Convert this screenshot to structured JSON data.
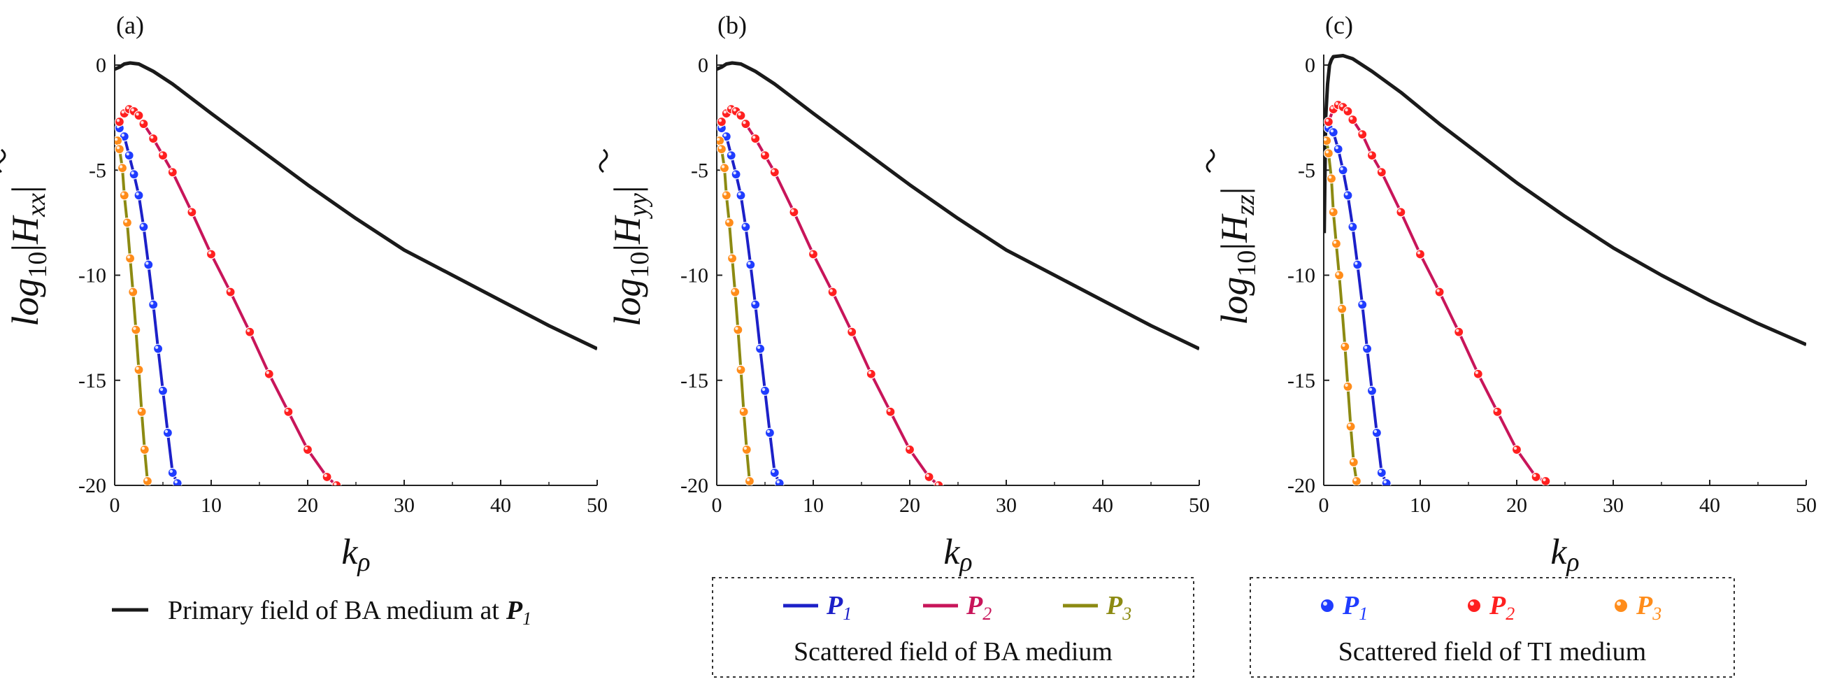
{
  "colors": {
    "primary": "#1a1a1a",
    "P1": "#1c20c8",
    "P2": "#c8155a",
    "P3": "#8c8a12",
    "P1_marker": "#1f3cff",
    "P2_marker": "#ff1f1f",
    "P3_marker": "#ff8c1a"
  },
  "chart_data": [
    {
      "type": "line",
      "panel_label": "(a)",
      "ylabel_main": "log",
      "ylabel_sub": "10",
      "ylabel_field": "H",
      "ylabel_component": "xx",
      "xlabel_main": "k",
      "xlabel_sub": "ρ",
      "xlim": [
        0,
        50
      ],
      "ylim": [
        -20,
        0.5
      ],
      "x_ticks": [
        "0",
        "10",
        "20",
        "30",
        "40",
        "50"
      ],
      "y_ticks": [
        "0",
        "-5",
        "-10",
        "-15",
        "-20"
      ],
      "primary": {
        "x": [
          0,
          0.5,
          1,
          1.6,
          2.5,
          4,
          6,
          10,
          15,
          20,
          25,
          30,
          35,
          40,
          45,
          50
        ],
        "y": [
          -0.2,
          -0.1,
          0.05,
          0.1,
          0.05,
          -0.3,
          -0.9,
          -2.3,
          -4.0,
          -5.7,
          -7.3,
          -8.8,
          -10.0,
          -11.2,
          -12.4,
          -13.5
        ]
      },
      "series": [
        {
          "name": "P1",
          "x": [
            0.5,
            1.0,
            1.5,
            2.0,
            2.5,
            3.0,
            3.5,
            4.0,
            4.5,
            5.0,
            5.5,
            6.0,
            6.5
          ],
          "y": [
            -3.0,
            -3.4,
            -4.3,
            -5.2,
            -6.2,
            -7.7,
            -9.5,
            -11.4,
            -13.5,
            -15.5,
            -17.5,
            -19.4,
            -19.9
          ]
        },
        {
          "name": "P2",
          "x": [
            0.5,
            1.0,
            1.5,
            2.0,
            2.5,
            3.0,
            4.0,
            5.0,
            6.0,
            8.0,
            10.0,
            12.0,
            14.0,
            16.0,
            18.0,
            20.0,
            22.0,
            23.0
          ],
          "y": [
            -2.7,
            -2.3,
            -2.1,
            -2.2,
            -2.4,
            -2.8,
            -3.5,
            -4.3,
            -5.1,
            -7.0,
            -9.0,
            -10.8,
            -12.7,
            -14.7,
            -16.5,
            -18.3,
            -19.6,
            -20.0
          ]
        },
        {
          "name": "P3",
          "x": [
            0.3,
            0.5,
            0.8,
            1.0,
            1.3,
            1.6,
            1.9,
            2.2,
            2.5,
            2.8,
            3.1,
            3.4
          ],
          "y": [
            -3.6,
            -4.0,
            -4.9,
            -6.2,
            -7.5,
            -9.2,
            -10.8,
            -12.6,
            -14.5,
            -16.5,
            -18.3,
            -19.8
          ]
        }
      ]
    },
    {
      "type": "line",
      "panel_label": "(b)",
      "ylabel_main": "log",
      "ylabel_sub": "10",
      "ylabel_field": "H",
      "ylabel_component": "yy",
      "xlabel_main": "k",
      "xlabel_sub": "ρ",
      "xlim": [
        0,
        50
      ],
      "ylim": [
        -20,
        0.5
      ],
      "x_ticks": [
        "0",
        "10",
        "20",
        "30",
        "40",
        "50"
      ],
      "y_ticks": [
        "0",
        "-5",
        "-10",
        "-15",
        "-20"
      ],
      "primary": {
        "x": [
          0,
          0.5,
          1,
          1.6,
          2.5,
          4,
          6,
          10,
          15,
          20,
          25,
          30,
          35,
          40,
          45,
          50
        ],
        "y": [
          -0.2,
          -0.1,
          0.05,
          0.1,
          0.05,
          -0.3,
          -0.9,
          -2.3,
          -4.0,
          -5.7,
          -7.3,
          -8.8,
          -10.0,
          -11.2,
          -12.4,
          -13.5
        ]
      },
      "series": [
        {
          "name": "P1",
          "x": [
            0.5,
            1.0,
            1.5,
            2.0,
            2.5,
            3.0,
            3.5,
            4.0,
            4.5,
            5.0,
            5.5,
            6.0,
            6.5
          ],
          "y": [
            -3.0,
            -3.4,
            -4.3,
            -5.2,
            -6.2,
            -7.7,
            -9.5,
            -11.4,
            -13.5,
            -15.5,
            -17.5,
            -19.4,
            -19.9
          ]
        },
        {
          "name": "P2",
          "x": [
            0.5,
            1.0,
            1.5,
            2.0,
            2.5,
            3.0,
            4.0,
            5.0,
            6.0,
            8.0,
            10.0,
            12.0,
            14.0,
            16.0,
            18.0,
            20.0,
            22.0,
            23.0
          ],
          "y": [
            -2.7,
            -2.3,
            -2.1,
            -2.2,
            -2.4,
            -2.8,
            -3.5,
            -4.3,
            -5.1,
            -7.0,
            -9.0,
            -10.8,
            -12.7,
            -14.7,
            -16.5,
            -18.3,
            -19.6,
            -20.0
          ]
        },
        {
          "name": "P3",
          "x": [
            0.3,
            0.5,
            0.8,
            1.0,
            1.3,
            1.6,
            1.9,
            2.2,
            2.5,
            2.8,
            3.1,
            3.4
          ],
          "y": [
            -3.6,
            -4.0,
            -4.9,
            -6.2,
            -7.5,
            -9.2,
            -10.8,
            -12.6,
            -14.5,
            -16.5,
            -18.3,
            -19.8
          ]
        }
      ]
    },
    {
      "type": "line",
      "panel_label": "(c)",
      "ylabel_main": "log",
      "ylabel_sub": "10",
      "ylabel_field": "H",
      "ylabel_component": "zz",
      "xlabel_main": "k",
      "xlabel_sub": "ρ",
      "xlim": [
        0,
        50
      ],
      "ylim": [
        -20,
        0.5
      ],
      "x_ticks": [
        "0",
        "10",
        "20",
        "30",
        "40",
        "50"
      ],
      "y_ticks": [
        "0",
        "-5",
        "-10",
        "-15",
        "-20"
      ],
      "primary": {
        "x": [
          0.05,
          0.2,
          0.4,
          0.6,
          0.8,
          1.0,
          2.0,
          3.0,
          5.0,
          8.0,
          12.0,
          16.0,
          20.0,
          25.0,
          30.0,
          35.0,
          40.0,
          45.0,
          50.0
        ],
        "y": [
          -8.0,
          -2.5,
          -0.9,
          0.0,
          0.25,
          0.4,
          0.45,
          0.3,
          -0.3,
          -1.3,
          -2.8,
          -4.2,
          -5.6,
          -7.2,
          -8.7,
          -10.0,
          -11.2,
          -12.3,
          -13.3
        ]
      },
      "series": [
        {
          "name": "P1",
          "x": [
            0.5,
            1.0,
            1.5,
            2.0,
            2.5,
            3.0,
            3.5,
            4.0,
            4.5,
            5.0,
            5.5,
            6.0,
            6.5
          ],
          "y": [
            -3.0,
            -3.2,
            -4.0,
            -5.0,
            -6.2,
            -7.7,
            -9.5,
            -11.4,
            -13.5,
            -15.5,
            -17.5,
            -19.4,
            -19.9
          ]
        },
        {
          "name": "P2",
          "x": [
            0.5,
            1.0,
            1.5,
            2.0,
            2.5,
            3.0,
            4.0,
            5.0,
            6.0,
            8.0,
            10.0,
            12.0,
            14.0,
            16.0,
            18.0,
            20.0,
            22.0,
            23.0
          ],
          "y": [
            -2.7,
            -2.1,
            -1.9,
            -2.0,
            -2.2,
            -2.6,
            -3.3,
            -4.3,
            -5.1,
            -7.0,
            -9.0,
            -10.8,
            -12.7,
            -14.7,
            -16.5,
            -18.3,
            -19.6,
            -19.8
          ]
        },
        {
          "name": "P3",
          "x": [
            0.3,
            0.5,
            0.8,
            1.0,
            1.3,
            1.6,
            1.9,
            2.2,
            2.5,
            2.8,
            3.1,
            3.4
          ],
          "y": [
            -3.6,
            -4.2,
            -5.4,
            -7.0,
            -8.5,
            -10.0,
            -11.6,
            -13.4,
            -15.3,
            -17.2,
            -18.9,
            -19.8
          ]
        }
      ]
    }
  ],
  "legends": {
    "primary": {
      "text": "Primary field of BA medium at",
      "p_label": "P",
      "p_sub": "1"
    },
    "ba": {
      "entries": [
        {
          "p": "P",
          "sub": "1"
        },
        {
          "p": "P",
          "sub": "2"
        },
        {
          "p": "P",
          "sub": "3"
        }
      ],
      "caption": "Scattered field of BA medium"
    },
    "ti": {
      "entries": [
        {
          "p": "P",
          "sub": "1"
        },
        {
          "p": "P",
          "sub": "2"
        },
        {
          "p": "P",
          "sub": "3"
        }
      ],
      "caption": "Scattered field of TI medium"
    }
  }
}
